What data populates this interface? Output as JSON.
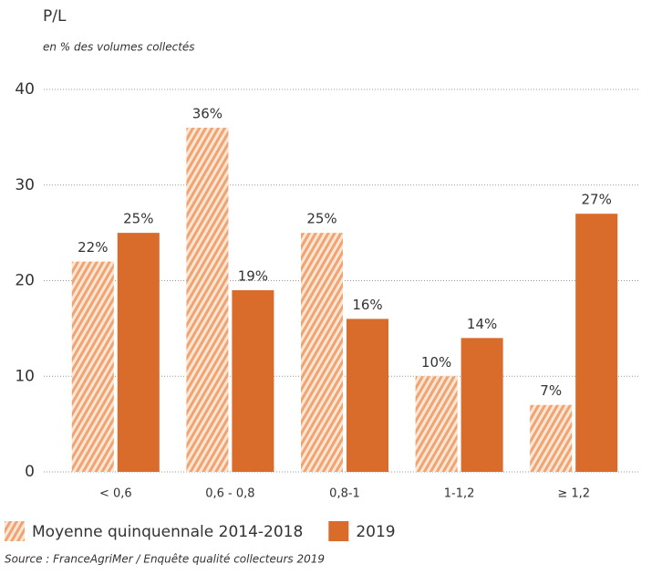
{
  "chart_data": {
    "type": "bar",
    "title": "P/L",
    "subtitle": "en % des volumes collectés",
    "source": "Source : FranceAgriMer / Enquête qualité collecteurs 2019",
    "categories": [
      "< 0,6",
      "0,6 - 0,8",
      "0,8-1",
      "1-1,2",
      "≥ 1,2"
    ],
    "series": [
      {
        "name": "Moyenne quinquennale 2014-2018",
        "color": "#f0a471",
        "hatch": true,
        "values": [
          22,
          36,
          25,
          10,
          7
        ],
        "value_labels": [
          "22%",
          "36%",
          "25%",
          "10%",
          "7%"
        ]
      },
      {
        "name": "2019",
        "color": "#d96b2b",
        "hatch": false,
        "values": [
          25,
          19,
          16,
          14,
          27
        ],
        "value_labels": [
          "25%",
          "19%",
          "16%",
          "14%",
          "27%"
        ]
      }
    ],
    "ylim": [
      0,
      40
    ],
    "yticks": [
      0,
      10,
      20,
      30,
      40
    ],
    "grid": true
  }
}
